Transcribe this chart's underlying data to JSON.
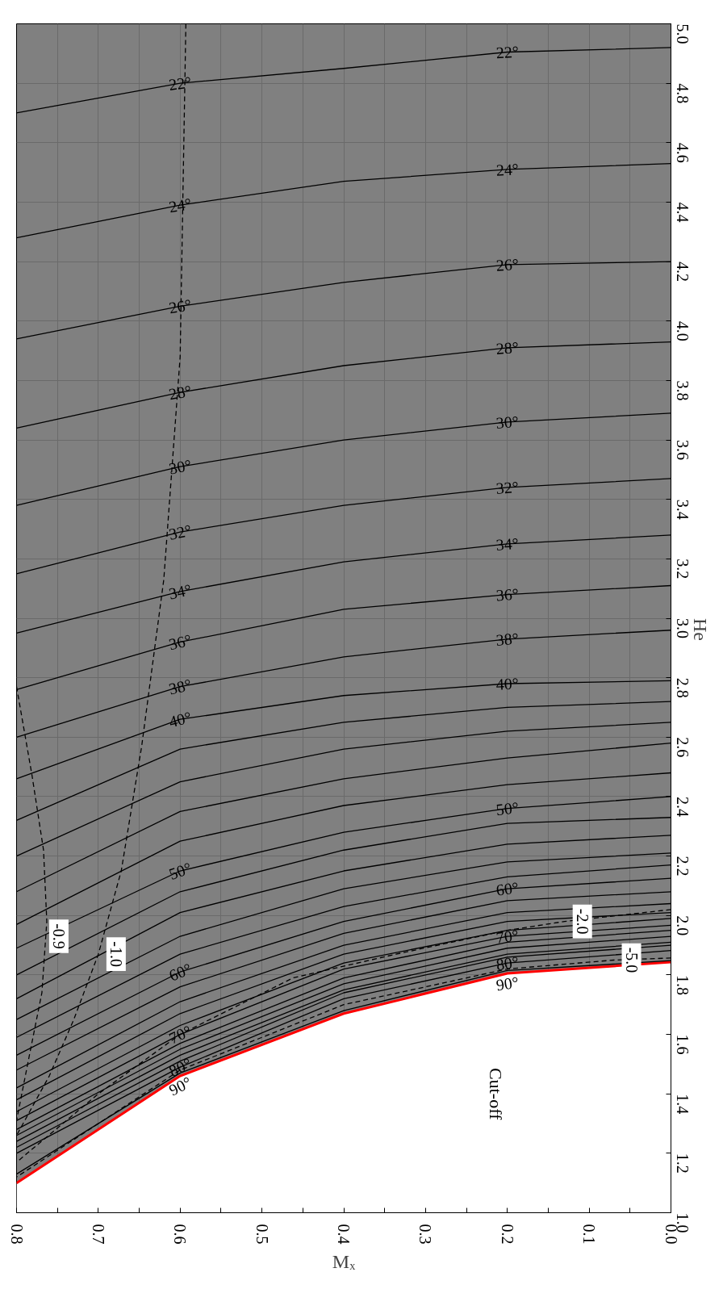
{
  "chart_data": {
    "type": "line",
    "xlabel": "Mₓ",
    "ylabel": "He",
    "xlim": [
      0.8,
      0.0
    ],
    "ylim": [
      1.0,
      5.0
    ],
    "xticks": [
      {
        "value": 0.8,
        "label": "0.8"
      },
      {
        "value": 0.75,
        "label": null
      },
      {
        "value": 0.7,
        "label": "0.7"
      },
      {
        "value": 0.65,
        "label": null
      },
      {
        "value": 0.6,
        "label": "0.6"
      },
      {
        "value": 0.55,
        "label": null
      },
      {
        "value": 0.5,
        "label": "0.5"
      },
      {
        "value": 0.45,
        "label": null
      },
      {
        "value": 0.4,
        "label": "0.4"
      },
      {
        "value": 0.35,
        "label": null
      },
      {
        "value": 0.3,
        "label": "0.3"
      },
      {
        "value": 0.25,
        "label": null
      },
      {
        "value": 0.2,
        "label": "0.2"
      },
      {
        "value": 0.15,
        "label": null
      },
      {
        "value": 0.1,
        "label": "0.1"
      },
      {
        "value": 0.05,
        "label": null
      },
      {
        "value": 0.0,
        "label": "0.0"
      }
    ],
    "yticks": [
      {
        "value": 1.0,
        "label": "1.0"
      },
      1.2,
      1.4,
      1.6,
      1.8,
      {
        "value": 2.0,
        "label": "2.0"
      },
      2.2,
      2.4,
      2.6,
      2.8,
      {
        "value": 3.0,
        "label": "3.0"
      },
      3.2,
      3.4,
      3.6,
      3.8,
      {
        "value": 4.0,
        "label": "4.0"
      },
      4.2,
      4.4,
      4.6,
      4.8,
      {
        "value": 5.0,
        "label": "5.0"
      }
    ],
    "grid": true,
    "line_style": "solid",
    "x": [
      0.8,
      0.6,
      0.4,
      0.2,
      0.0
    ],
    "series": [
      {
        "type": "area",
        "color": "#ff0000",
        "values": [
          1.1,
          1.46,
          1.67,
          1.805,
          1.843
        ]
      },
      {
        "name": "22°",
        "color": "#000000",
        "values": [
          4.7,
          4.8,
          4.85,
          4.905,
          4.92
        ]
      },
      {
        "name": "24°",
        "color": "#000000",
        "values": [
          4.28,
          4.39,
          4.47,
          4.51,
          4.53
        ]
      },
      {
        "name": "26°",
        "color": "#000000",
        "values": [
          3.94,
          4.05,
          4.13,
          4.19,
          4.2
        ]
      },
      {
        "name": "28°",
        "color": "#000000",
        "values": [
          3.64,
          3.76,
          3.85,
          3.91,
          3.93
        ]
      },
      {
        "name": "30°",
        "color": "#000000",
        "values": [
          3.38,
          3.51,
          3.6,
          3.66,
          3.69
        ]
      },
      {
        "name": "32°",
        "color": "#000000",
        "values": [
          3.15,
          3.29,
          3.38,
          3.44,
          3.47
        ]
      },
      {
        "name": "34°",
        "color": "#000000",
        "values": [
          2.95,
          3.09,
          3.19,
          3.25,
          3.28
        ]
      },
      {
        "name": "36°",
        "color": "#000000",
        "values": [
          2.76,
          2.92,
          3.03,
          3.08,
          3.11
        ]
      },
      {
        "name": "38°",
        "color": "#000000",
        "values": [
          2.6,
          2.77,
          2.87,
          2.93,
          2.96
        ]
      },
      {
        "name": "40°",
        "color": "#000000",
        "values": [
          2.46,
          2.66,
          2.74,
          2.78,
          2.79
        ]
      },
      {
        "color": "#000000",
        "values": [
          2.32,
          2.56,
          2.65,
          2.7,
          2.72
        ]
      },
      {
        "color": "#000000",
        "values": [
          2.2,
          2.45,
          2.56,
          2.62,
          2.65
        ]
      },
      {
        "color": "#000000",
        "values": [
          2.08,
          2.35,
          2.46,
          2.53,
          2.58
        ]
      },
      {
        "color": "#000000",
        "values": [
          1.97,
          2.25,
          2.37,
          2.44,
          2.48
        ]
      },
      {
        "name": "50°",
        "color": "#000000",
        "values": [
          1.89,
          2.15,
          2.28,
          2.36,
          2.4
        ]
      },
      {
        "color": "#000000",
        "values": [
          1.8,
          2.08,
          2.22,
          2.31,
          2.33
        ]
      },
      {
        "color": "#000000",
        "values": [
          1.72,
          2.01,
          2.15,
          2.24,
          2.27
        ]
      },
      {
        "color": "#000000",
        "values": [
          1.65,
          1.93,
          2.09,
          2.18,
          2.21
        ]
      },
      {
        "color": "#000000",
        "values": [
          1.59,
          1.87,
          2.03,
          2.13,
          2.17
        ]
      },
      {
        "name": "60°",
        "color": "#000000",
        "values": [
          1.53,
          1.81,
          1.98,
          2.09,
          2.125
        ]
      },
      {
        "color": "#000000",
        "values": [
          1.48,
          1.76,
          1.94,
          2.05,
          2.08
        ]
      },
      {
        "color": "#000000",
        "values": [
          1.42,
          1.71,
          1.9,
          2.01,
          2.04
        ]
      },
      {
        "color": "#000000",
        "values": [
          1.38,
          1.67,
          1.87,
          1.98,
          2.01
        ]
      },
      {
        "color": "#000000",
        "values": [
          1.34,
          1.63,
          1.84,
          1.95,
          1.99
        ]
      },
      {
        "name": "70°",
        "color": "#000000",
        "values": [
          1.31,
          1.6,
          1.82,
          1.93,
          1.967
        ]
      },
      {
        "color": "#000000",
        "values": [
          1.28,
          1.57,
          1.79,
          1.91,
          1.95
        ]
      },
      {
        "color": "#000000",
        "values": [
          1.26,
          1.55,
          1.77,
          1.89,
          1.93
        ]
      },
      {
        "color": "#000000",
        "values": [
          1.24,
          1.53,
          1.75,
          1.87,
          1.91
        ]
      },
      {
        "color": "#000000",
        "values": [
          1.22,
          1.51,
          1.74,
          1.86,
          1.9
        ]
      },
      {
        "name": "80°",
        "color": "#000000",
        "values": [
          1.2,
          1.49,
          1.72,
          1.84,
          1.882
        ]
      },
      {
        "name": "90°",
        "color": "#000000",
        "values": [
          1.13,
          1.47,
          1.68,
          1.815,
          1.848
        ]
      },
      {
        "color": "#000000",
        "line_style": "dashed",
        "x": [
          0.8,
          0.781,
          0.767,
          0.763,
          0.769,
          0.785,
          0.8
        ],
        "values": [
          2.77,
          2.47,
          2.22,
          1.98,
          1.74,
          1.52,
          1.31
        ]
      },
      {
        "color": "#000000",
        "line_style": "dashed",
        "x": [
          0.593,
          0.6,
          0.62,
          0.647,
          0.672,
          0.7,
          0.73,
          0.76,
          0.8
        ],
        "values": [
          5.0,
          3.88,
          3.13,
          2.57,
          2.15,
          1.87,
          1.65,
          1.46,
          1.26
        ]
      },
      {
        "color": "#000000",
        "line_style": "dashed",
        "x": [
          0.0,
          0.13,
          0.2,
          0.336,
          0.462,
          0.6,
          0.7,
          0.8
        ],
        "values": [
          2.02,
          1.98,
          1.95,
          1.87,
          1.79,
          1.6,
          1.4,
          1.17
        ]
      },
      {
        "color": "#000000",
        "line_style": "dashed",
        "x": [
          0.0,
          0.07,
          0.2,
          0.4,
          0.6,
          0.8
        ],
        "values": [
          1.857,
          1.85,
          1.82,
          1.7,
          1.48,
          1.12
        ]
      }
    ],
    "annotations": [
      {
        "text": "-0.9",
        "x": 0.77,
        "y": 1.93
      },
      {
        "text": "-1.0",
        "x": 0.7,
        "y": 1.87
      },
      {
        "text": "-2.0",
        "x": 0.13,
        "y": 1.98
      },
      {
        "text": "-5.0",
        "x": 0.07,
        "y": 1.85
      },
      "Cut-off"
    ]
  }
}
